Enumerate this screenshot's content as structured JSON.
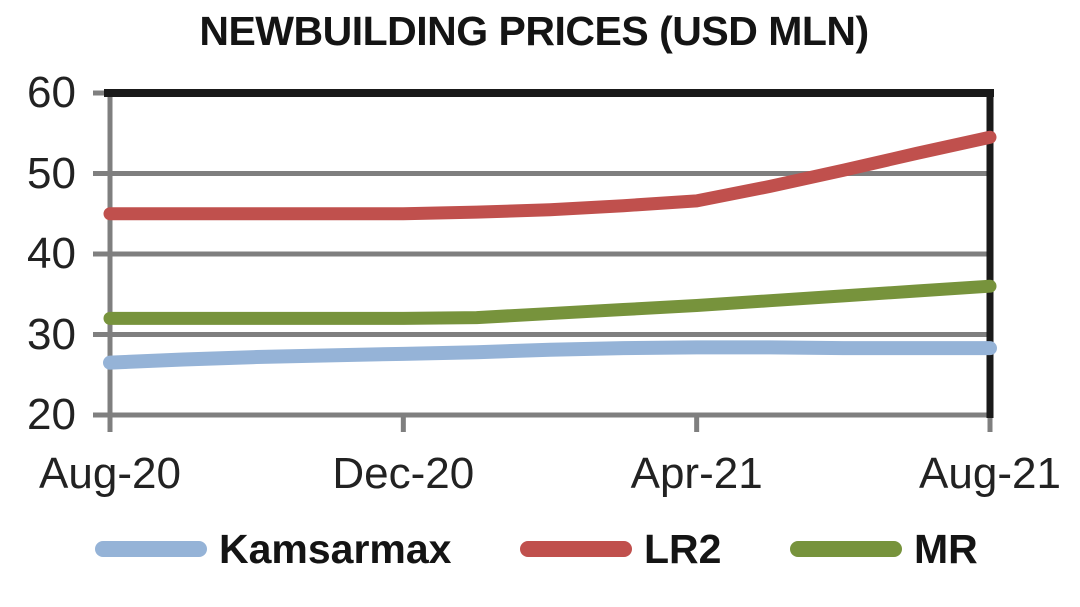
{
  "chart_data": {
    "type": "line",
    "title": "NEWBUILDING PRICES (USD MLN)",
    "x_tick_labels": [
      "Aug-20",
      "Dec-20",
      "Apr-21",
      "Aug-21"
    ],
    "x_tick_positions": [
      0,
      4,
      8,
      12
    ],
    "x_range": [
      0,
      12
    ],
    "x_unit": "monthly points from Aug-2020 to Aug-2021",
    "ylim": [
      20,
      60
    ],
    "yticks": [
      20,
      30,
      40,
      50,
      60
    ],
    "grid": "horizontal",
    "legend_position": "bottom",
    "series": [
      {
        "name": "Kamsarmax",
        "color": "#95B3D7",
        "stroke_width": 14,
        "values": [
          26.5,
          26.9,
          27.2,
          27.4,
          27.6,
          27.8,
          28.1,
          28.3,
          28.4,
          28.4,
          28.3,
          28.3,
          28.3
        ]
      },
      {
        "name": "LR2",
        "color": "#C0504D",
        "stroke_width": 13,
        "values": [
          45.0,
          45.0,
          45.0,
          45.0,
          45.0,
          45.2,
          45.5,
          46.0,
          46.6,
          48.4,
          50.4,
          52.5,
          54.5
        ]
      },
      {
        "name": "MR",
        "color": "#77933C",
        "stroke_width": 13,
        "values": [
          32.0,
          32.0,
          32.0,
          32.0,
          32.0,
          32.1,
          32.6,
          33.1,
          33.6,
          34.2,
          34.8,
          35.4,
          36.0
        ]
      }
    ],
    "colors": {
      "grid": "#7F7F7F",
      "axis": "#7F7F7F",
      "border": "#1A1A1A",
      "text": "#1F1F1F",
      "background": "#FFFFFF"
    }
  }
}
